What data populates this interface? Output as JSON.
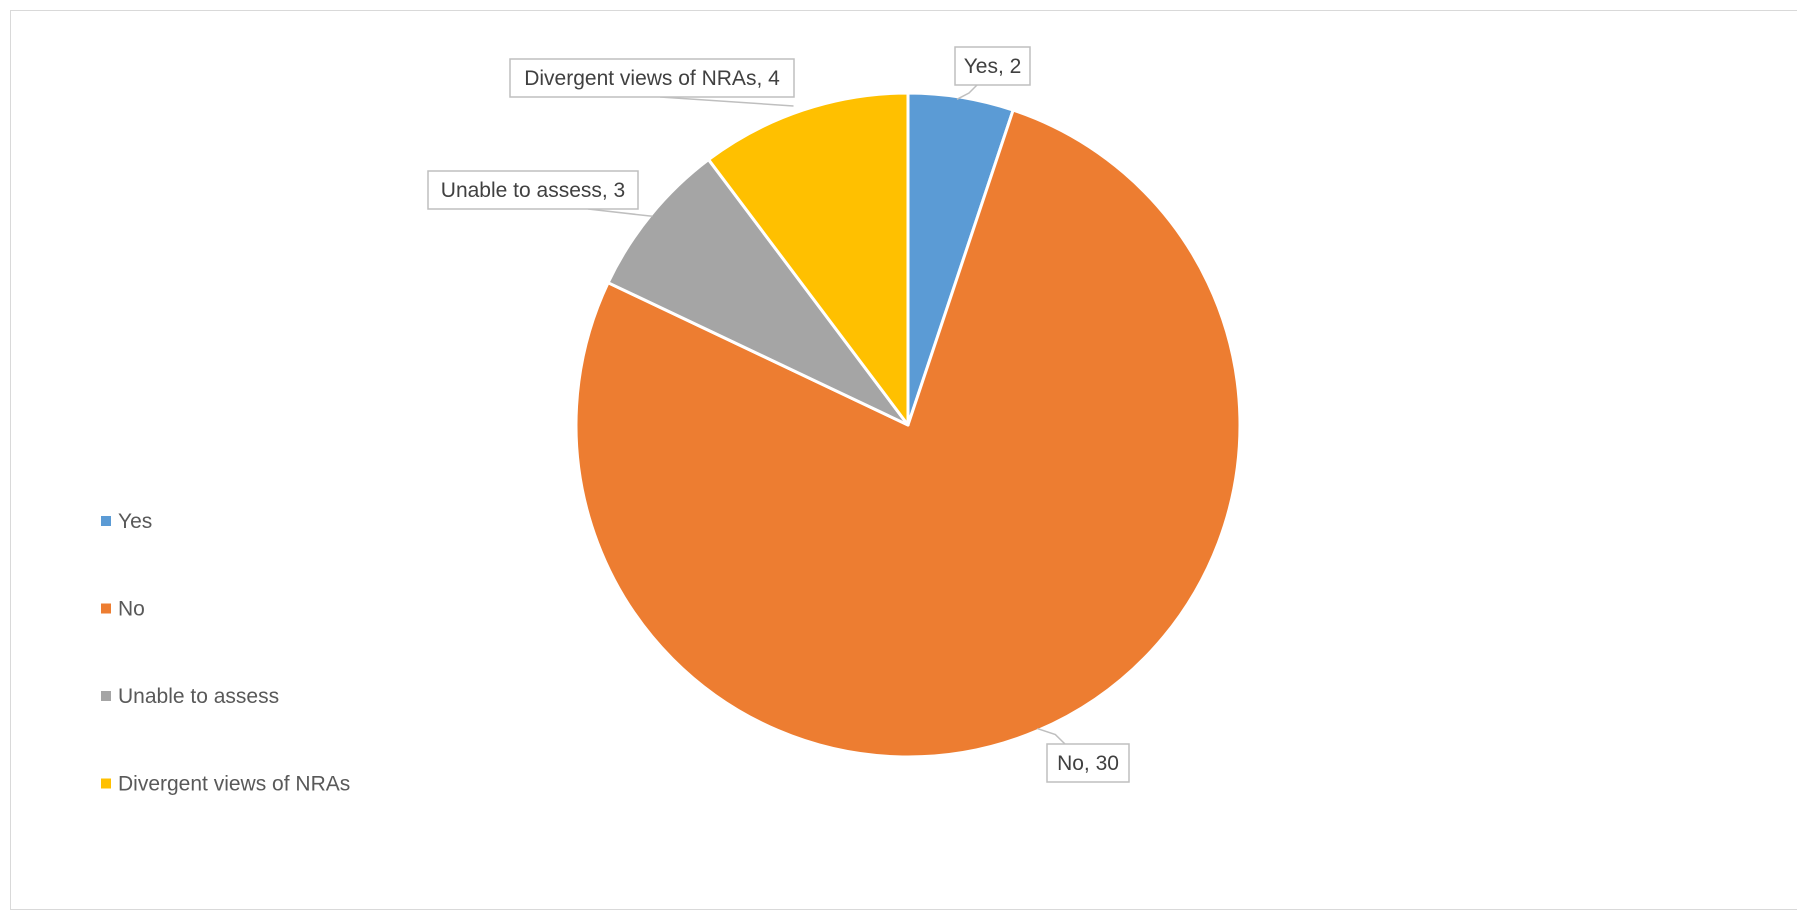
{
  "chart_data": {
    "type": "pie",
    "title": "",
    "categories": [
      "Yes",
      "No",
      "Unable to assess",
      "Divergent views of NRAs"
    ],
    "values": [
      2,
      30,
      3,
      4
    ],
    "colors": [
      "#5b9bd5",
      "#ed7d31",
      "#a5a5a5",
      "#ffc000"
    ],
    "data_labels": [
      "Yes, 2",
      "No, 30",
      "Unable to assess, 3",
      "Divergent views of NRAs, 4"
    ],
    "legend": {
      "position": "left",
      "entries": [
        "Yes",
        "No",
        "Unable to assess",
        "Divergent views of NRAs"
      ]
    }
  }
}
